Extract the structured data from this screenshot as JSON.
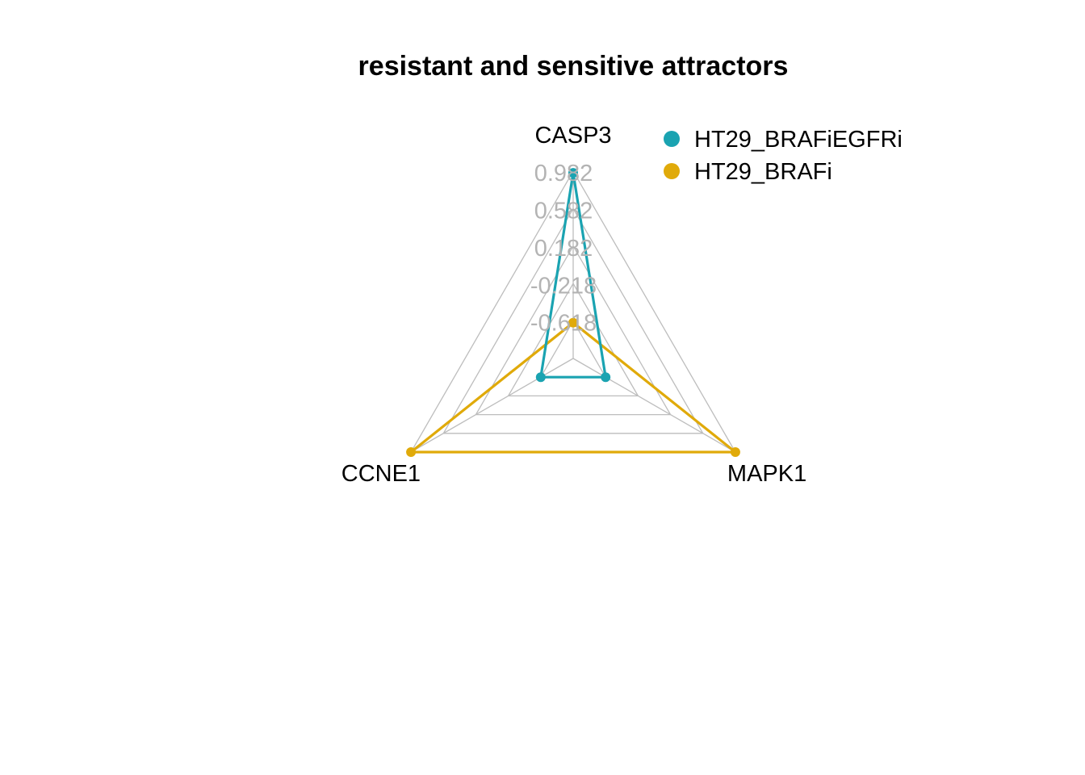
{
  "chart_data": {
    "type": "radar",
    "title": "resistant and sensitive attractors",
    "axes": [
      "CASP3",
      "MAPK1",
      "CCNE1"
    ],
    "tick_values": [
      0.982,
      0.582,
      0.182,
      -0.218,
      -0.618
    ],
    "tick_labels": [
      "0.982",
      "0.582",
      "0.182",
      "-0.218",
      "-0.618"
    ],
    "range": [
      -1.0,
      1.0
    ],
    "grid": true,
    "legend_position": "top-right",
    "series": [
      {
        "name": "HT29_BRAFiEGFRi",
        "color": "#1aa3b1",
        "values": [
          0.982,
          -0.6,
          -0.6
        ]
      },
      {
        "name": "HT29_BRAFi",
        "color": "#e0aa0a",
        "values": [
          -0.618,
          1.0,
          1.0
        ]
      }
    ]
  }
}
